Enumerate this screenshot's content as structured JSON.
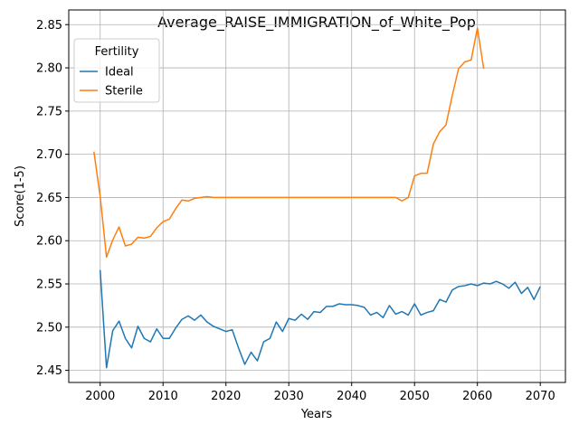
{
  "chart_data": {
    "type": "line",
    "title": "Average_RAISE_IMMIGRATION_of_White_Pop",
    "xlabel": "Years",
    "ylabel": "Score(1-5)",
    "xlim": [
      1995,
      2074
    ],
    "ylim": [
      2.436,
      2.867
    ],
    "xticks": [
      2000,
      2010,
      2020,
      2030,
      2040,
      2050,
      2060,
      2070
    ],
    "yticks": [
      2.45,
      2.5,
      2.55,
      2.6,
      2.65,
      2.7,
      2.75,
      2.8,
      2.85
    ],
    "grid": true,
    "legend": {
      "title": "Fertility",
      "placement": "top-left"
    },
    "series": [
      {
        "name": "Ideal",
        "color": "#1f77b4",
        "x": [
          2000,
          2001,
          2002,
          2003,
          2004,
          2005,
          2006,
          2007,
          2008,
          2009,
          2010,
          2011,
          2012,
          2013,
          2014,
          2015,
          2016,
          2017,
          2018,
          2019,
          2020,
          2021,
          2022,
          2023,
          2024,
          2025,
          2026,
          2027,
          2028,
          2029,
          2030,
          2031,
          2032,
          2033,
          2034,
          2035,
          2036,
          2037,
          2038,
          2039,
          2040,
          2041,
          2042,
          2043,
          2044,
          2045,
          2046,
          2047,
          2048,
          2049,
          2050,
          2051,
          2052,
          2053,
          2054,
          2055,
          2056,
          2057,
          2058,
          2059,
          2060,
          2061,
          2062,
          2063,
          2064,
          2065,
          2066,
          2067,
          2068,
          2069,
          2070
        ],
        "values": [
          2.566,
          2.453,
          2.496,
          2.507,
          2.487,
          2.476,
          2.501,
          2.487,
          2.483,
          2.498,
          2.487,
          2.487,
          2.499,
          2.509,
          2.513,
          2.508,
          2.514,
          2.506,
          2.501,
          2.498,
          2.495,
          2.497,
          2.476,
          2.457,
          2.471,
          2.461,
          2.483,
          2.487,
          2.506,
          2.495,
          2.51,
          2.508,
          2.515,
          2.509,
          2.518,
          2.517,
          2.524,
          2.524,
          2.527,
          2.526,
          2.526,
          2.525,
          2.523,
          2.514,
          2.517,
          2.511,
          2.525,
          2.515,
          2.518,
          2.514,
          2.527,
          2.514,
          2.517,
          2.519,
          2.532,
          2.529,
          2.543,
          2.547,
          2.548,
          2.55,
          2.548,
          2.551,
          2.55,
          2.553,
          2.55,
          2.545,
          2.552,
          2.539,
          2.546,
          2.532,
          2.547
        ]
      },
      {
        "name": "Sterile",
        "color": "#ff7f0e",
        "x": [
          1999,
          2000,
          2001,
          2002,
          2003,
          2004,
          2005,
          2006,
          2007,
          2008,
          2009,
          2010,
          2011,
          2012,
          2013,
          2014,
          2015,
          2016,
          2017,
          2018,
          2019,
          2020,
          2021,
          2022,
          2023,
          2024,
          2025,
          2026,
          2027,
          2028,
          2029,
          2030,
          2031,
          2032,
          2033,
          2034,
          2035,
          2036,
          2037,
          2038,
          2039,
          2040,
          2041,
          2042,
          2043,
          2044,
          2045,
          2046,
          2047,
          2048,
          2049,
          2050,
          2051,
          2052,
          2053,
          2054,
          2055,
          2056,
          2057,
          2058,
          2059,
          2060,
          2061
        ],
        "values": [
          2.703,
          2.651,
          2.581,
          2.601,
          2.616,
          2.594,
          2.596,
          2.604,
          2.603,
          2.605,
          2.615,
          2.622,
          2.625,
          2.637,
          2.647,
          2.646,
          2.649,
          2.65,
          2.651,
          2.65,
          2.65,
          2.65,
          2.65,
          2.65,
          2.65,
          2.65,
          2.65,
          2.65,
          2.65,
          2.65,
          2.65,
          2.65,
          2.65,
          2.65,
          2.65,
          2.65,
          2.65,
          2.65,
          2.65,
          2.65,
          2.65,
          2.65,
          2.65,
          2.65,
          2.65,
          2.65,
          2.65,
          2.65,
          2.65,
          2.646,
          2.65,
          2.675,
          2.678,
          2.678,
          2.712,
          2.726,
          2.734,
          2.768,
          2.799,
          2.807,
          2.809,
          2.846,
          2.799
        ]
      }
    ]
  }
}
